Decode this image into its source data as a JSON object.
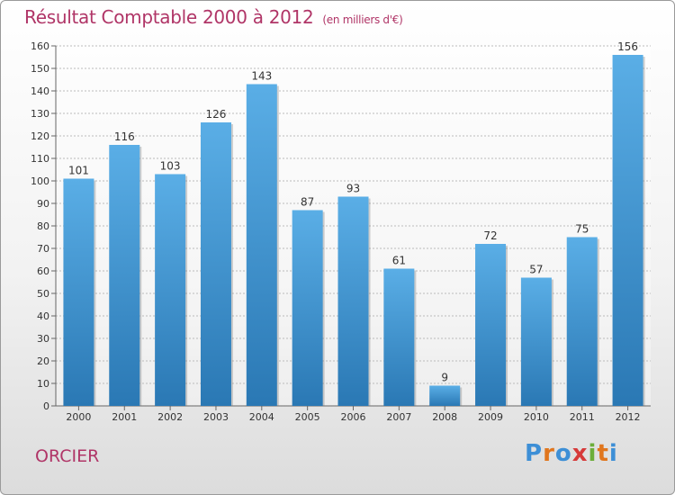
{
  "chart_data": {
    "type": "bar",
    "title": "Résultat Comptable 2000 à 2012",
    "subtitle": "(en milliers d'€)",
    "categories": [
      "2000",
      "2001",
      "2002",
      "2003",
      "2004",
      "2005",
      "2006",
      "2007",
      "2008",
      "2009",
      "2010",
      "2011",
      "2012"
    ],
    "values": [
      101,
      116,
      103,
      126,
      143,
      87,
      93,
      61,
      9,
      72,
      57,
      75,
      156
    ],
    "ylim": [
      0,
      160
    ],
    "yticks": [
      0,
      10,
      20,
      30,
      40,
      50,
      60,
      70,
      80,
      90,
      100,
      110,
      120,
      130,
      140,
      150,
      160
    ],
    "xlabel": "",
    "ylabel": "",
    "grid": true,
    "bar_color_top": "#5aaee6",
    "bar_color_bottom": "#2a78b4"
  },
  "footer": {
    "commune": "ORCIER",
    "logo_letters": [
      "P",
      "r",
      "o",
      "x",
      "i",
      "t",
      "i"
    ],
    "logo_colors": [
      "#3d8fd6",
      "#e0761e",
      "#3d8fd6",
      "#d63a3a",
      "#6cae3a",
      "#e0761e",
      "#3d8fd6"
    ]
  },
  "colors": {
    "title": "#b03567",
    "grid": "#bbbbbb"
  }
}
